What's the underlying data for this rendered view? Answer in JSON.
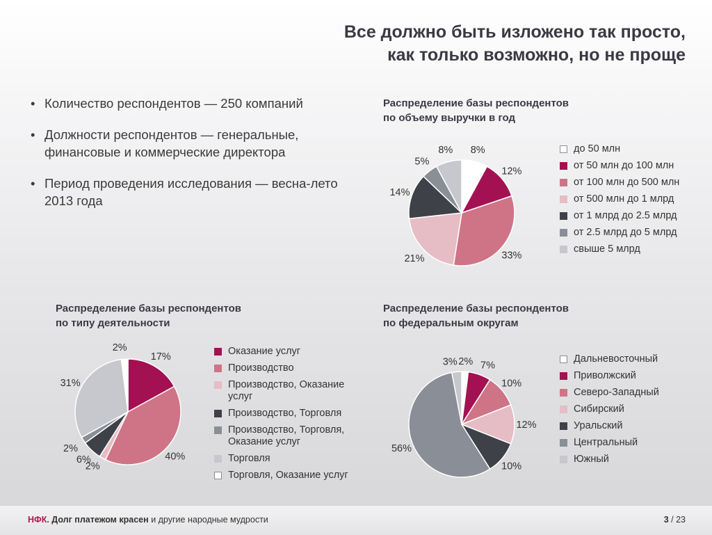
{
  "title": {
    "line1": "Все должно быть изложено так просто,",
    "line2": "как только возможно, но не проще"
  },
  "bullets": [
    {
      "text": "Количество респондентов — 250 компаний"
    },
    {
      "text": "Должности респондентов — генеральные, финансовые и коммерческие директора"
    },
    {
      "text": "Период проведения исследования — весна-лето 2013 года"
    }
  ],
  "bullet_symbol": "•",
  "chart_data": [
    {
      "type": "pie",
      "title": "Распределение базы респондентов по объему выручки в год",
      "title_lines": [
        "Распределение базы респондентов",
        "по объему выручки в год"
      ],
      "legend_position": "right",
      "slices": [
        {
          "label": "до 50 млн",
          "value": 8,
          "display": "8%",
          "color": "#ffffff"
        },
        {
          "label": "от 50 млн до 100 млн",
          "value": 12,
          "display": "12%",
          "color": "#a41152"
        },
        {
          "label": "от 100 млн до 500 млн",
          "value": 33,
          "display": "33%",
          "color": "#cf7487"
        },
        {
          "label": "от 500 млн до 1 млрд",
          "value": 21,
          "display": "21%",
          "color": "#e6bcc5"
        },
        {
          "label": "от 1 млрд до 2.5 млрд",
          "value": 14,
          "display": "14%",
          "color": "#3f4149"
        },
        {
          "label": "от 2.5 млрд до 5 млрд",
          "value": 5,
          "display": "5%",
          "color": "#8a8e96"
        },
        {
          "label": "свыше 5 млрд",
          "value": 8,
          "display": "8%",
          "color": "#c6c8cd"
        }
      ]
    },
    {
      "type": "pie",
      "title": "Распределение базы респондентов по типу деятельности",
      "title_lines": [
        "Распределение базы респондентов",
        "по типу деятельности"
      ],
      "legend_position": "right",
      "slices": [
        {
          "label": "Оказание услуг",
          "value": 17,
          "display": "17%",
          "color": "#a41152"
        },
        {
          "label": "Производство",
          "value": 40,
          "display": "40%",
          "color": "#cf7487"
        },
        {
          "label": "Производство, Оказание услуг",
          "value": 2,
          "display": "2%",
          "color": "#e6bcc5"
        },
        {
          "label": "Производство,  Торговля",
          "value": 6,
          "display": "6%",
          "color": "#3f4149"
        },
        {
          "label": "Производство, Торговля, Оказание услуг",
          "value": 2,
          "display": "2%",
          "color": "#8a8e96"
        },
        {
          "label": "Торговля",
          "value": 31,
          "display": "31%",
          "color": "#c6c8cd"
        },
        {
          "label": "Торговля, Оказание услуг",
          "value": 2,
          "display": "2%",
          "color": "#ffffff"
        }
      ]
    },
    {
      "type": "pie",
      "title": "Распределение базы респондентов по федеральным округам",
      "title_lines": [
        "Распределение базы респондентов",
        "по федеральным округам"
      ],
      "legend_position": "right",
      "slices": [
        {
          "label": "Дальневосточный",
          "value": 2,
          "display": "2%",
          "color": "#ffffff"
        },
        {
          "label": "Приволжский",
          "value": 7,
          "display": "7%",
          "color": "#a41152"
        },
        {
          "label": "Северо-Западный",
          "value": 10,
          "display": "10%",
          "color": "#cf7487"
        },
        {
          "label": "Сибирский",
          "value": 12,
          "display": "12%",
          "color": "#e6bcc5"
        },
        {
          "label": "Уральский",
          "value": 10,
          "display": "10%",
          "color": "#3f4149"
        },
        {
          "label": "Центральный",
          "value": 56,
          "display": "56%",
          "color": "#8a8e96"
        },
        {
          "label": "Южный",
          "value": 3,
          "display": "3%",
          "color": "#c6c8cd"
        }
      ]
    }
  ],
  "footer": {
    "brand": "НФК.",
    "slogan": "Долг платежом красен",
    "rest": "и другие народные мудрости",
    "page_current": "3",
    "page_sep": "/",
    "page_total": "23"
  }
}
